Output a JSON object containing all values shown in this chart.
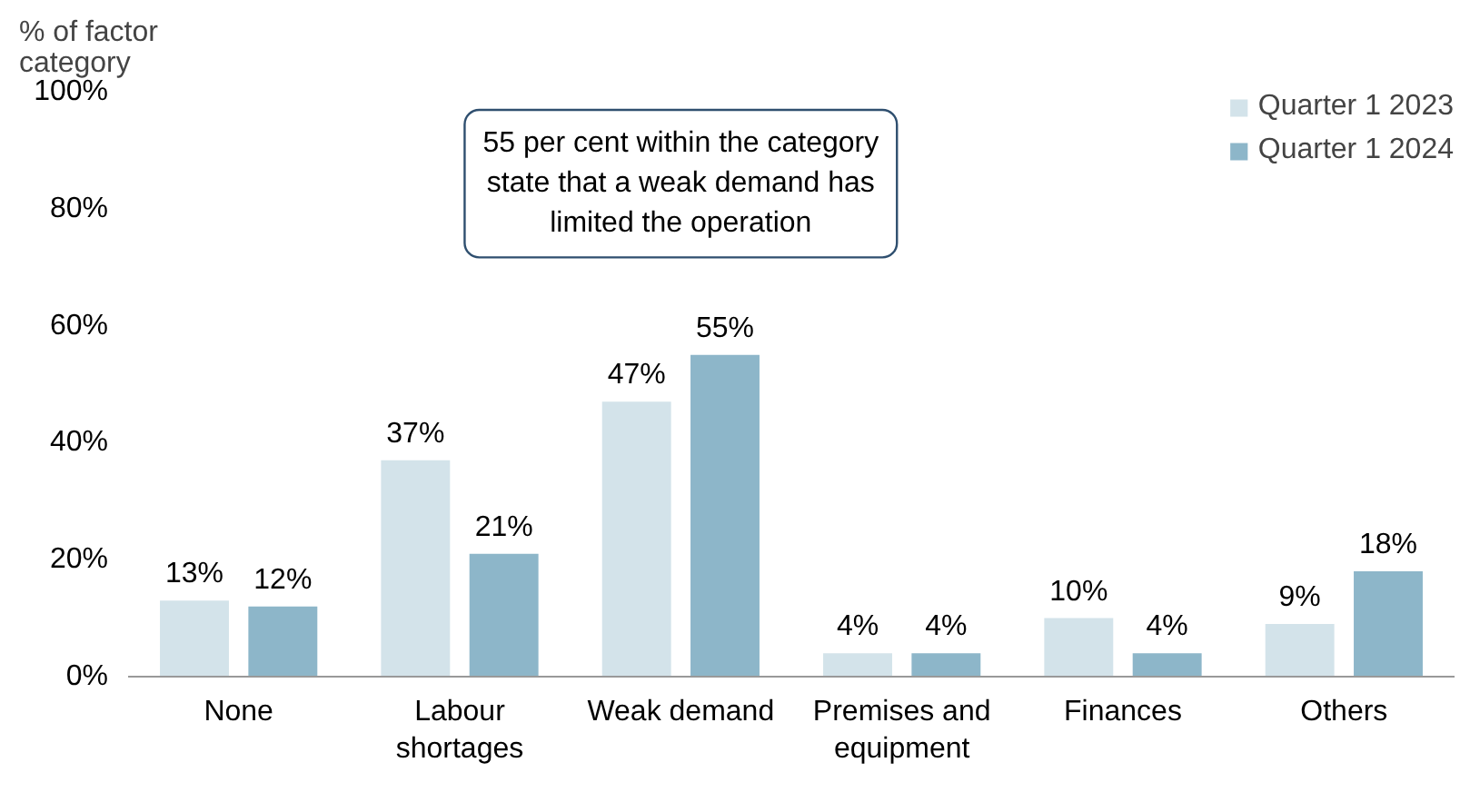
{
  "chart_data": {
    "type": "bar",
    "ylabel": "% of factor category",
    "categories": [
      "None",
      "Labour shortages",
      "Weak demand",
      "Premises and equipment",
      "Finances",
      "Others"
    ],
    "series": [
      {
        "name": "Quarter 1 2023",
        "color": "#d3e3ea",
        "values": [
          13,
          37,
          47,
          4,
          10,
          9
        ],
        "value_labels": [
          "13%",
          "37%",
          "47%",
          "4%",
          "10%",
          "9%"
        ]
      },
      {
        "name": "Quarter 1 2024",
        "color": "#8db6c9",
        "values": [
          12,
          21,
          55,
          4,
          4,
          18
        ],
        "value_labels": [
          "12%",
          "21%",
          "55%",
          "4%",
          "4%",
          "18%"
        ]
      }
    ],
    "ylim": [
      0,
      100
    ],
    "yticks": [
      {
        "value": 0,
        "label": "0%"
      },
      {
        "value": 20,
        "label": "20%"
      },
      {
        "value": 40,
        "label": "40%"
      },
      {
        "value": 60,
        "label": "60%"
      },
      {
        "value": 80,
        "label": "80%"
      },
      {
        "value": 100,
        "label": "100%"
      }
    ],
    "annotations": [
      "55 per cent within the category state that a weak demand has limited the operation"
    ],
    "grid": false,
    "legend": "top right"
  }
}
